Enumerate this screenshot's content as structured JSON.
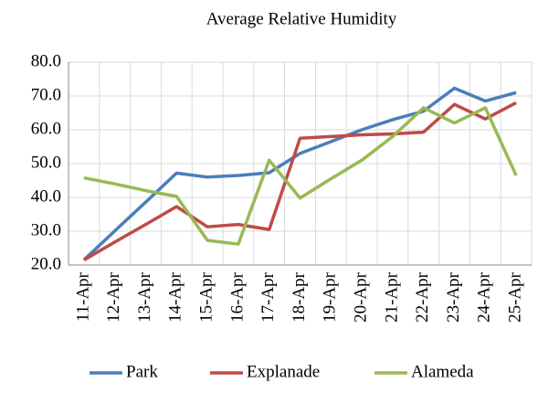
{
  "chart_data": {
    "type": "line",
    "title": "Average Relative Humidity",
    "categories": [
      "11-Apr",
      "12-Apr",
      "13-Apr",
      "14-Apr",
      "15-Apr",
      "16-Apr",
      "17-Apr",
      "18-Apr",
      "19-Apr",
      "20-Apr",
      "21-Apr",
      "22-Apr",
      "23-Apr",
      "24-Apr",
      "25-Apr"
    ],
    "series": [
      {
        "name": "Park",
        "color": "#4a7ebb",
        "values": [
          21.5,
          30.1,
          38.6,
          47.2,
          46,
          46.5,
          47.3,
          53,
          56.5,
          60,
          63,
          65.5,
          72.3,
          68.5,
          71
        ]
      },
      {
        "name": "Explanade",
        "color": "#be4b48",
        "values": [
          21.5,
          26.8,
          32,
          37.3,
          31.3,
          32,
          30.5,
          57.5,
          58,
          58.5,
          58.8,
          59.3,
          67.5,
          63.2,
          68
        ]
      },
      {
        "name": "Alameda",
        "color": "#98b954",
        "values": [
          45.8,
          44,
          42,
          40.3,
          27.3,
          26.2,
          51,
          39.8,
          45.5,
          51,
          58,
          66.5,
          62,
          66.5,
          46.5
        ]
      }
    ],
    "ylim": [
      20,
      80
    ],
    "yticks": [
      {
        "value": 20,
        "label": "20.0"
      },
      {
        "value": 30,
        "label": "30.0"
      },
      {
        "value": 40,
        "label": "40.0"
      },
      {
        "value": 50,
        "label": "50.0"
      },
      {
        "value": 60,
        "label": "60.0"
      },
      {
        "value": 70,
        "label": "70.0"
      },
      {
        "value": 80,
        "label": "80.0"
      }
    ],
    "grid": true,
    "legend": "bottom"
  }
}
